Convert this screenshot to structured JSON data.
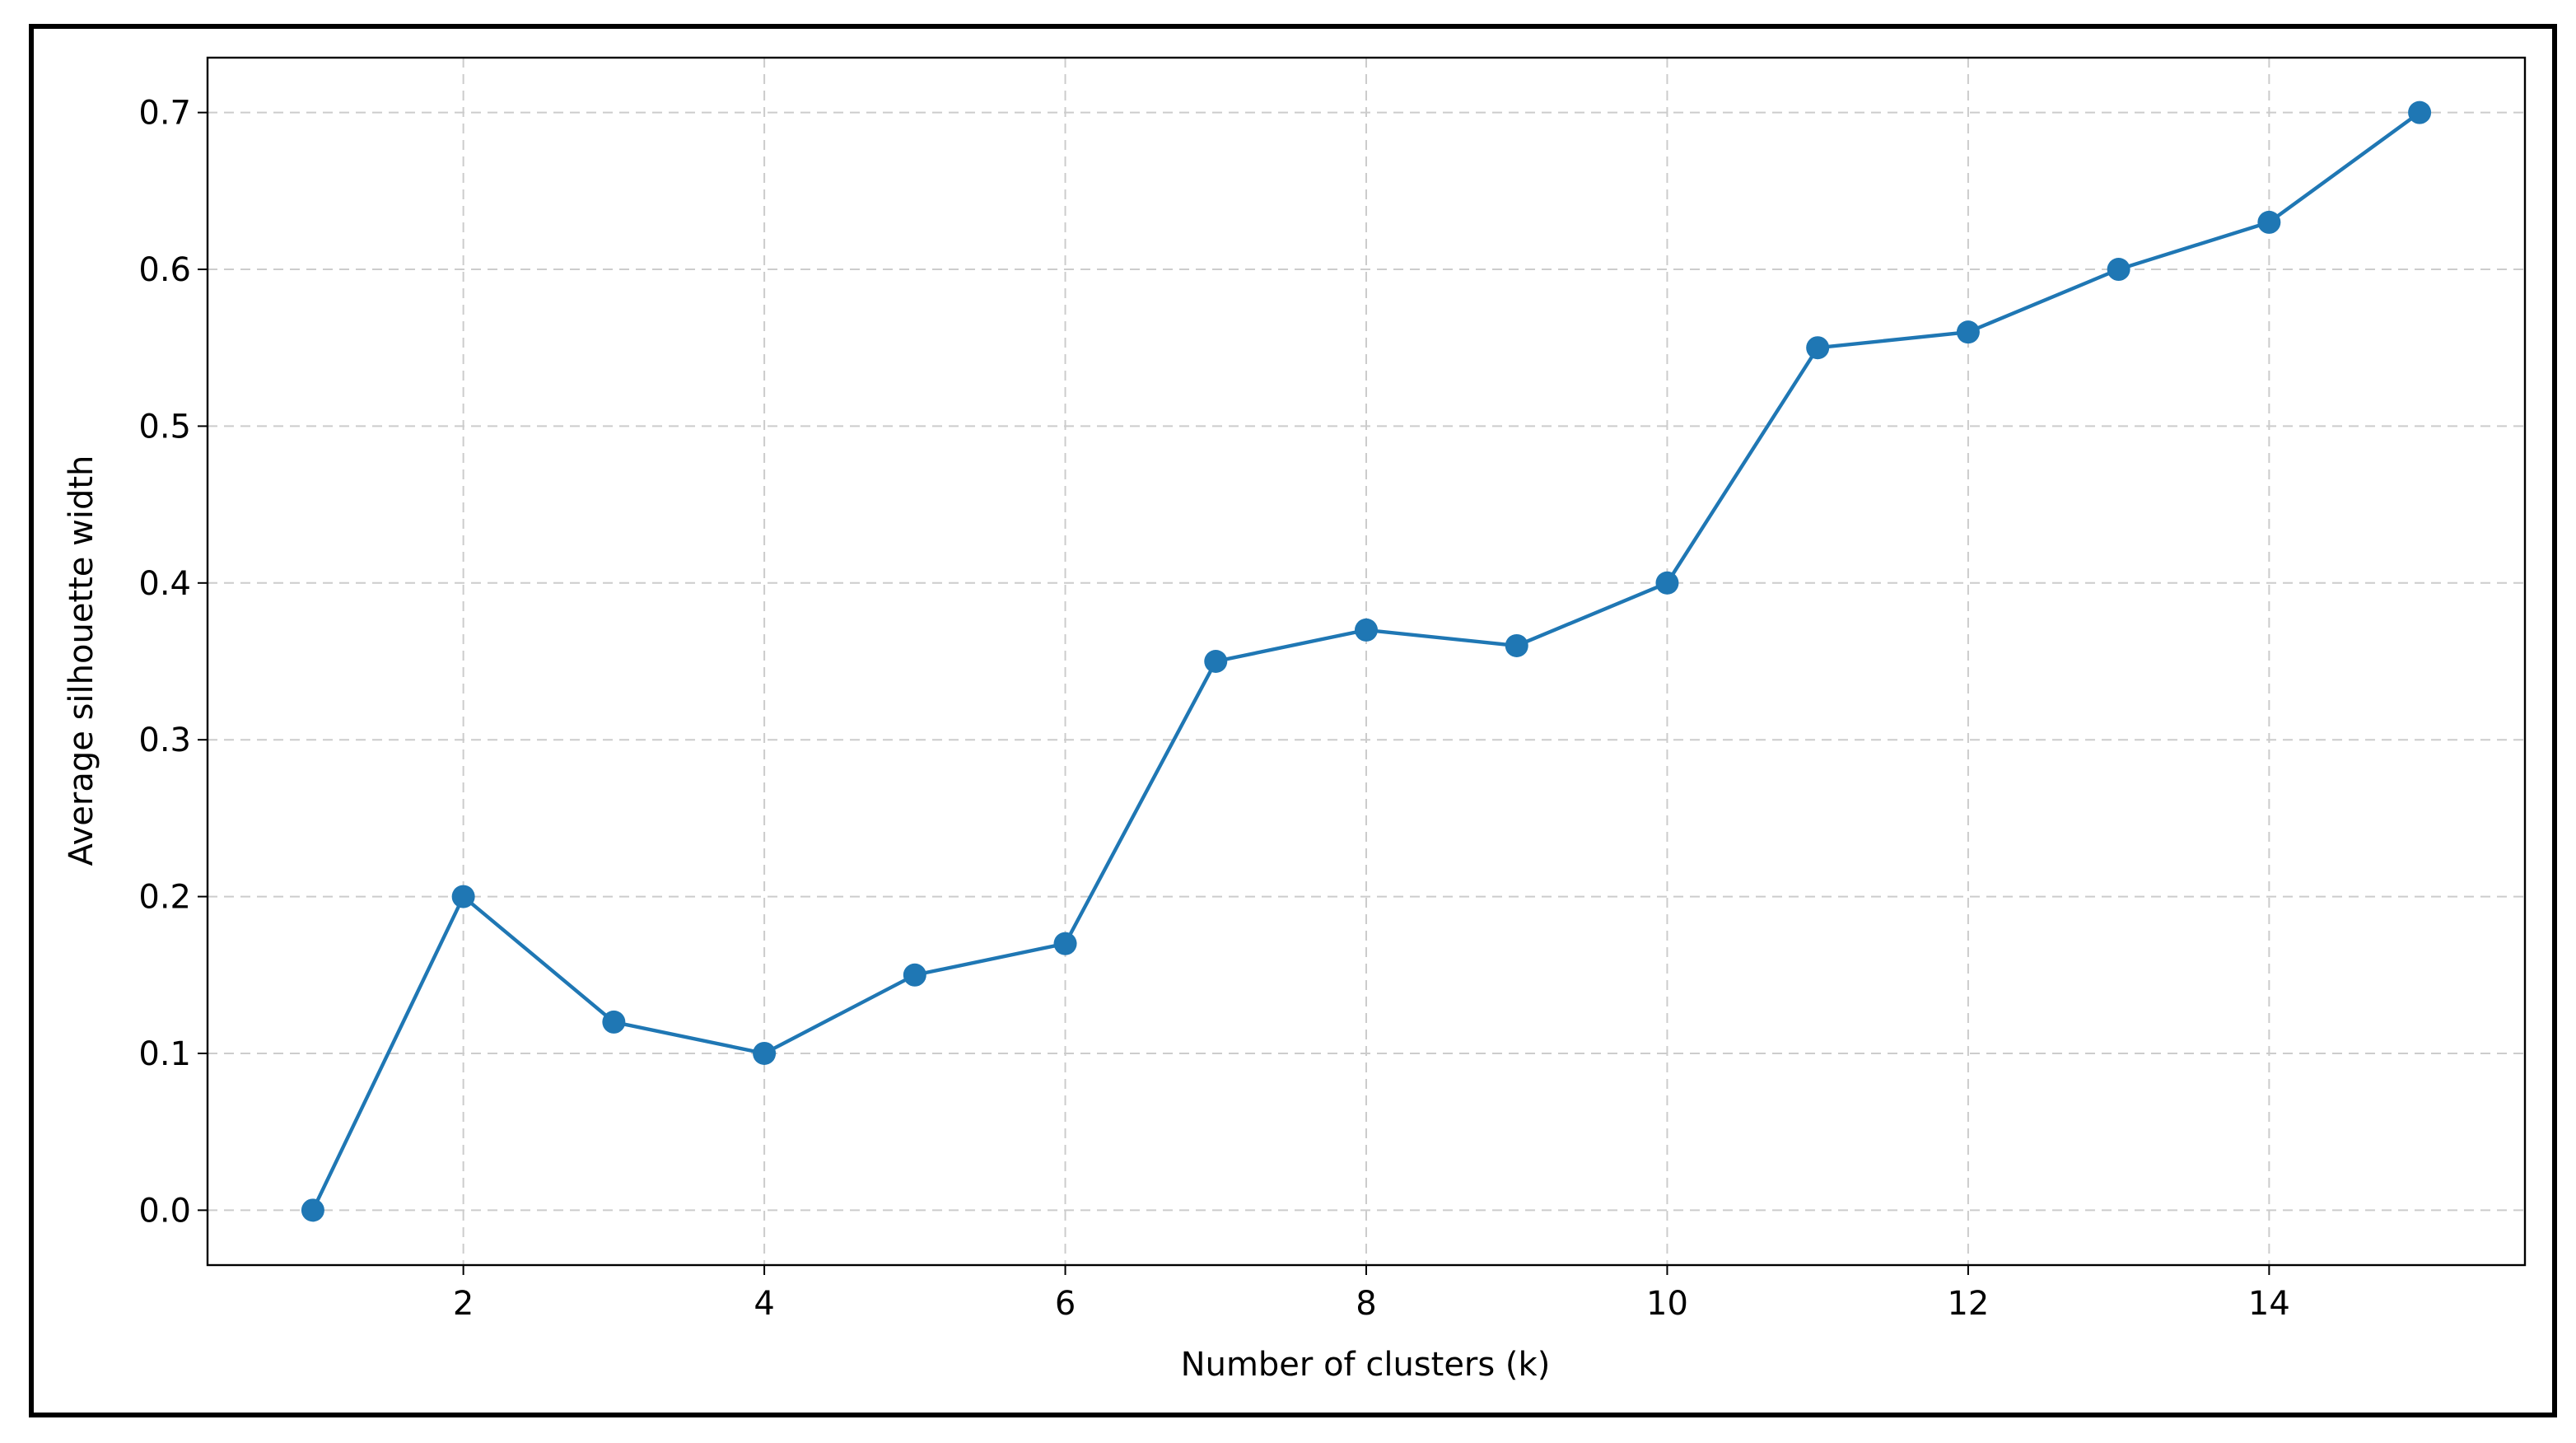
{
  "chart_data": {
    "type": "line",
    "xlabel": "Number of clusters (k)",
    "ylabel": "Average silhouette width",
    "x": [
      1,
      2,
      3,
      4,
      5,
      6,
      7,
      8,
      9,
      10,
      11,
      12,
      13,
      14,
      15
    ],
    "series": [
      {
        "color": "#1f77b4",
        "values": [
          0,
          0.2,
          0.12,
          0.1,
          0.15,
          0.17,
          0.35,
          0.37,
          0.36,
          0.4,
          0.55,
          0.56,
          0.6,
          0.63,
          0.7
        ]
      }
    ],
    "xlim": [
      0.3,
      15.7
    ],
    "ylim": [
      -0.035,
      0.735
    ],
    "xticks": [
      2,
      4,
      6,
      8,
      10,
      12,
      14
    ],
    "yticks": [
      {
        "value": 0,
        "label": "0.0"
      },
      0.1,
      0.2,
      0.3,
      0.4,
      0.5,
      0.6,
      0.7
    ],
    "grid": true
  }
}
